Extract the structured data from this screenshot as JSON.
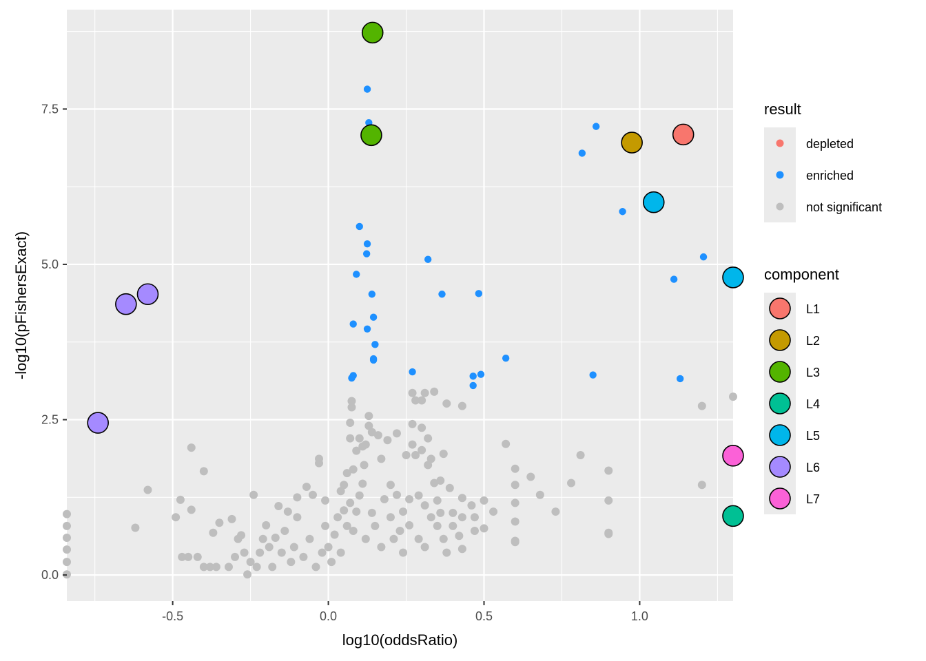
{
  "chart_data": {
    "type": "scatter",
    "xlabel": "log10(oddsRatio)",
    "ylabel": "-log10(pFishersExact)",
    "xlim": [
      -0.84,
      1.3
    ],
    "ylim": [
      -0.42,
      9.1
    ],
    "x_ticks": [
      -0.5,
      0.0,
      0.5,
      1.0
    ],
    "x_tick_labels": [
      "-0.5",
      "0.0",
      "0.5",
      "1.0"
    ],
    "y_ticks": [
      0.0,
      2.5,
      5.0,
      7.5
    ],
    "y_tick_labels": [
      "0.0",
      "2.5",
      "5.0",
      "7.5"
    ],
    "grid": true,
    "legend_position": "right",
    "result_legend": {
      "title": "result",
      "entries": [
        {
          "label": "depleted",
          "color": "#F8766D"
        },
        {
          "label": "enriched",
          "color": "#1E90FF"
        },
        {
          "label": "not significant",
          "color": "#BEBEBE"
        }
      ]
    },
    "component_legend": {
      "title": "component",
      "entries": [
        {
          "label": "L1",
          "color": "#F8766D"
        },
        {
          "label": "L2",
          "color": "#C49A00"
        },
        {
          "label": "L3",
          "color": "#53B400"
        },
        {
          "label": "L4",
          "color": "#00C094"
        },
        {
          "label": "L5",
          "color": "#00B6EB"
        },
        {
          "label": "L6",
          "color": "#A58AFF"
        },
        {
          "label": "L7",
          "color": "#FB61D7"
        }
      ]
    },
    "enriched_points": [
      [
        0.125,
        7.82
      ],
      [
        0.13,
        7.28
      ],
      [
        0.86,
        7.22
      ],
      [
        0.815,
        6.79
      ],
      [
        0.945,
        5.85
      ],
      [
        0.1,
        5.61
      ],
      [
        0.125,
        5.33
      ],
      [
        0.123,
        5.17
      ],
      [
        0.32,
        5.08
      ],
      [
        1.205,
        5.12
      ],
      [
        0.09,
        4.84
      ],
      [
        1.11,
        4.76
      ],
      [
        0.14,
        4.52
      ],
      [
        0.365,
        4.52
      ],
      [
        0.483,
        4.53
      ],
      [
        0.145,
        4.15
      ],
      [
        0.08,
        4.04
      ],
      [
        0.125,
        3.96
      ],
      [
        0.15,
        3.71
      ],
      [
        0.145,
        3.48
      ],
      [
        0.145,
        3.46
      ],
      [
        0.57,
        3.49
      ],
      [
        0.27,
        3.27
      ],
      [
        0.49,
        3.23
      ],
      [
        0.85,
        3.22
      ],
      [
        0.465,
        3.2
      ],
      [
        0.08,
        3.21
      ],
      [
        0.075,
        3.17
      ],
      [
        1.13,
        3.16
      ],
      [
        0.465,
        3.05
      ]
    ],
    "not_significant_points": [
      [
        -0.84,
        0.98
      ],
      [
        -0.84,
        0.79
      ],
      [
        -0.84,
        0.6
      ],
      [
        -0.84,
        0.41
      ],
      [
        -0.84,
        0.21
      ],
      [
        -0.84,
        0.01
      ],
      [
        -0.62,
        0.76
      ],
      [
        -0.58,
        1.37
      ],
      [
        -0.49,
        0.93
      ],
      [
        -0.475,
        1.21
      ],
      [
        -0.45,
        0.29
      ],
      [
        -0.47,
        0.29
      ],
      [
        -0.44,
        1.05
      ],
      [
        -0.44,
        2.05
      ],
      [
        -0.42,
        0.29
      ],
      [
        -0.4,
        1.67
      ],
      [
        -0.4,
        0.13
      ],
      [
        -0.38,
        0.13
      ],
      [
        -0.36,
        0.13
      ],
      [
        -0.37,
        0.68
      ],
      [
        -0.35,
        0.84
      ],
      [
        -0.32,
        0.13
      ],
      [
        -0.31,
        0.9
      ],
      [
        -0.3,
        0.29
      ],
      [
        -0.29,
        0.58
      ],
      [
        -0.28,
        0.64
      ],
      [
        -0.27,
        0.36
      ],
      [
        -0.26,
        0.01
      ],
      [
        -0.25,
        0.21
      ],
      [
        -0.24,
        1.29
      ],
      [
        -0.23,
        0.13
      ],
      [
        -0.22,
        0.36
      ],
      [
        -0.21,
        0.58
      ],
      [
        -0.2,
        0.8
      ],
      [
        -0.19,
        0.45
      ],
      [
        -0.18,
        0.13
      ],
      [
        -0.17,
        0.6
      ],
      [
        -0.16,
        1.11
      ],
      [
        -0.15,
        0.36
      ],
      [
        -0.14,
        0.71
      ],
      [
        -0.13,
        1.02
      ],
      [
        -0.12,
        0.21
      ],
      [
        -0.11,
        0.45
      ],
      [
        -0.1,
        0.93
      ],
      [
        -0.1,
        1.25
      ],
      [
        -0.08,
        0.29
      ],
      [
        -0.07,
        1.42
      ],
      [
        -0.06,
        0.58
      ],
      [
        -0.05,
        1.29
      ],
      [
        -0.04,
        0.13
      ],
      [
        -0.03,
        1.87
      ],
      [
        -0.03,
        1.8
      ],
      [
        -0.02,
        0.36
      ],
      [
        -0.01,
        0.79
      ],
      [
        -0.01,
        1.2
      ],
      [
        0.0,
        0.45
      ],
      [
        0.01,
        0.21
      ],
      [
        0.02,
        0.65
      ],
      [
        0.03,
        0.93
      ],
      [
        0.04,
        0.36
      ],
      [
        0.04,
        1.35
      ],
      [
        0.05,
        1.45
      ],
      [
        0.05,
        1.04
      ],
      [
        0.06,
        0.79
      ],
      [
        0.06,
        1.64
      ],
      [
        0.07,
        2.2
      ],
      [
        0.07,
        1.16
      ],
      [
        0.07,
        2.45
      ],
      [
        0.075,
        2.8
      ],
      [
        0.075,
        2.7
      ],
      [
        0.08,
        1.7
      ],
      [
        0.08,
        0.71
      ],
      [
        0.09,
        1.02
      ],
      [
        0.09,
        2.0
      ],
      [
        0.1,
        1.28
      ],
      [
        0.1,
        2.2
      ],
      [
        0.11,
        1.47
      ],
      [
        0.11,
        2.07
      ],
      [
        0.115,
        1.77
      ],
      [
        0.12,
        2.1
      ],
      [
        0.12,
        0.58
      ],
      [
        0.13,
        2.56
      ],
      [
        0.13,
        2.4
      ],
      [
        0.14,
        2.3
      ],
      [
        0.14,
        1.0
      ],
      [
        0.15,
        0.79
      ],
      [
        0.16,
        2.25
      ],
      [
        0.17,
        1.87
      ],
      [
        0.17,
        0.45
      ],
      [
        0.18,
        1.22
      ],
      [
        0.19,
        2.17
      ],
      [
        0.2,
        1.45
      ],
      [
        0.2,
        0.93
      ],
      [
        0.21,
        0.58
      ],
      [
        0.22,
        2.28
      ],
      [
        0.22,
        1.29
      ],
      [
        0.23,
        0.71
      ],
      [
        0.24,
        1.02
      ],
      [
        0.24,
        0.36
      ],
      [
        0.25,
        1.93
      ],
      [
        0.26,
        0.8
      ],
      [
        0.26,
        1.22
      ],
      [
        0.27,
        2.1
      ],
      [
        0.27,
        2.43
      ],
      [
        0.27,
        2.93
      ],
      [
        0.28,
        1.93
      ],
      [
        0.28,
        2.81
      ],
      [
        0.29,
        0.58
      ],
      [
        0.29,
        1.28
      ],
      [
        0.3,
        2.01
      ],
      [
        0.3,
        2.37
      ],
      [
        0.3,
        2.81
      ],
      [
        0.31,
        1.12
      ],
      [
        0.31,
        0.45
      ],
      [
        0.31,
        2.93
      ],
      [
        0.32,
        2.2
      ],
      [
        0.32,
        1.77
      ],
      [
        0.33,
        1.87
      ],
      [
        0.33,
        0.93
      ],
      [
        0.34,
        1.48
      ],
      [
        0.34,
        2.95
      ],
      [
        0.35,
        1.2
      ],
      [
        0.35,
        0.79
      ],
      [
        0.36,
        1.52
      ],
      [
        0.36,
        1.0
      ],
      [
        0.37,
        1.95
      ],
      [
        0.37,
        0.58
      ],
      [
        0.38,
        2.76
      ],
      [
        0.38,
        0.36
      ],
      [
        0.39,
        1.4
      ],
      [
        0.4,
        1.0
      ],
      [
        0.4,
        0.79
      ],
      [
        0.42,
        0.63
      ],
      [
        0.43,
        0.93
      ],
      [
        0.43,
        1.24
      ],
      [
        0.43,
        0.42
      ],
      [
        0.43,
        2.72
      ],
      [
        0.46,
        1.12
      ],
      [
        0.47,
        0.93
      ],
      [
        0.47,
        0.71
      ],
      [
        0.5,
        1.2
      ],
      [
        0.5,
        0.75
      ],
      [
        0.53,
        1.02
      ],
      [
        0.6,
        1.71
      ],
      [
        0.6,
        1.45
      ],
      [
        0.6,
        1.16
      ],
      [
        0.6,
        0.86
      ],
      [
        0.6,
        0.53
      ],
      [
        0.6,
        0.55
      ],
      [
        0.57,
        2.11
      ],
      [
        0.65,
        1.58
      ],
      [
        0.68,
        1.29
      ],
      [
        0.73,
        1.02
      ],
      [
        0.78,
        1.48
      ],
      [
        0.81,
        1.93
      ],
      [
        0.9,
        1.68
      ],
      [
        0.9,
        1.2
      ],
      [
        0.9,
        0.68
      ],
      [
        0.9,
        0.66
      ],
      [
        1.2,
        2.72
      ],
      [
        1.2,
        1.45
      ],
      [
        1.3,
        2.87
      ]
    ],
    "component_points": [
      {
        "label": "L1",
        "x": 1.14,
        "y": 7.09
      },
      {
        "label": "L2",
        "x": 0.975,
        "y": 6.96
      },
      {
        "label": "L3",
        "x": 0.142,
        "y": 8.73
      },
      {
        "label": "L3",
        "x": 0.138,
        "y": 7.08
      },
      {
        "label": "L4",
        "x": 1.3,
        "y": 0.95
      },
      {
        "label": "L5",
        "x": 1.045,
        "y": 6.0
      },
      {
        "label": "L5",
        "x": 1.3,
        "y": 4.79
      },
      {
        "label": "L6",
        "x": -0.58,
        "y": 4.52
      },
      {
        "label": "L6",
        "x": -0.65,
        "y": 4.36
      },
      {
        "label": "L6",
        "x": -0.74,
        "y": 2.45
      },
      {
        "label": "L7",
        "x": 1.3,
        "y": 1.92
      }
    ]
  }
}
